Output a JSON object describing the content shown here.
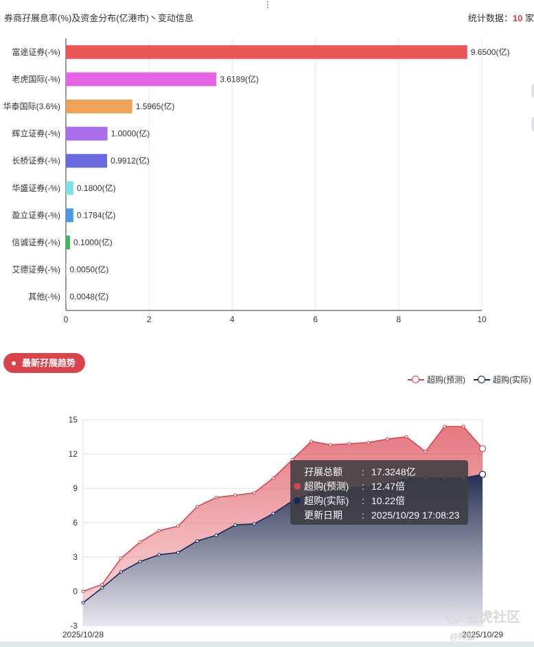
{
  "header": {
    "title": "券商孖展息率(%)及资金分布(亿港市)丶变动信息",
    "stat_label": "统计数据：",
    "stat_value": "10",
    "stat_unit": "家"
  },
  "trend": {
    "section_label": "最新孖展趋势",
    "tooltip": {
      "rows": [
        {
          "key": "孖展总额",
          "value": "17.3248亿",
          "color": ""
        },
        {
          "key": "超购(预测)",
          "value": "12.47倍",
          "color": "#d9434b"
        },
        {
          "key": "超购(实际)",
          "value": "10.22倍",
          "color": "#102a5a"
        },
        {
          "key": "更新日期",
          "value": "2025/10/29 17:08:23",
          "color": ""
        }
      ]
    }
  },
  "watermark": {
    "brand": "老虎社区",
    "credit": "@熊猫"
  },
  "chart_data": [
    {
      "type": "bar",
      "orientation": "horizontal",
      "categories": [
        "富途证券(-%)",
        "老虎国际(-%)",
        "华泰国际(3.6%)",
        "辉立证券(-%)",
        "长桥证券(-%)",
        "华盛证券(-%)",
        "盈立证券(-%)",
        "信诚证券(-%)",
        "艾德证券(-%)",
        "其他(-%)"
      ],
      "values": [
        9.65,
        3.6189,
        1.5965,
        1.0,
        0.9912,
        0.18,
        0.1784,
        0.1,
        0.005,
        0.0048
      ],
      "data_labels": [
        "9.6500(亿)",
        "3.6189(亿)",
        "1.5965(亿)",
        "1.0000(亿)",
        "0.9912(亿)",
        "0.1800(亿)",
        "0.1784(亿)",
        "0.1000(亿)",
        "0.0050(亿)",
        "0.0048(亿)"
      ],
      "colors": [
        "#eb5757",
        "#e564e3",
        "#eda256",
        "#a86de8",
        "#6b6ae0",
        "#7ee2e6",
        "#4a97e8",
        "#3cb95b",
        "#7d7d7d",
        "#7d7d7d"
      ],
      "xlim": [
        0,
        10
      ],
      "xticks": [
        0,
        2,
        4,
        6,
        8,
        10
      ],
      "grid": true
    },
    {
      "type": "area",
      "x": [
        "2025/10/28",
        "",
        "",
        "",
        "",
        "",
        "",
        "",
        "",
        "",
        "",
        "",
        "",
        "",
        "",
        "",
        "",
        "",
        "",
        "",
        "",
        "2025/10/29"
      ],
      "xtick_labels": [
        "2025/10/28",
        "2025/10/29"
      ],
      "series": [
        {
          "name": "超购(预测)",
          "color": "#d9434b",
          "values": [
            0.0,
            0.6,
            2.9,
            4.3,
            5.3,
            5.7,
            7.4,
            8.2,
            8.4,
            8.6,
            9.9,
            11.5,
            13.1,
            12.8,
            12.9,
            13.0,
            13.3,
            13.5,
            12.2,
            14.4,
            14.4,
            12.47
          ]
        },
        {
          "name": "超购(实际)",
          "color": "#102a5a",
          "values": [
            -1.0,
            0.3,
            1.7,
            2.6,
            3.2,
            3.4,
            4.4,
            4.9,
            5.8,
            5.9,
            6.8,
            7.9,
            8.6,
            8.8,
            9.0,
            9.2,
            9.4,
            9.9,
            9.9,
            9.9,
            9.9,
            10.22
          ]
        }
      ],
      "ylim": [
        -3,
        15
      ],
      "yticks": [
        -3,
        0,
        3,
        6,
        9,
        12,
        15
      ],
      "legend_position": "top-right",
      "grid": true
    }
  ]
}
